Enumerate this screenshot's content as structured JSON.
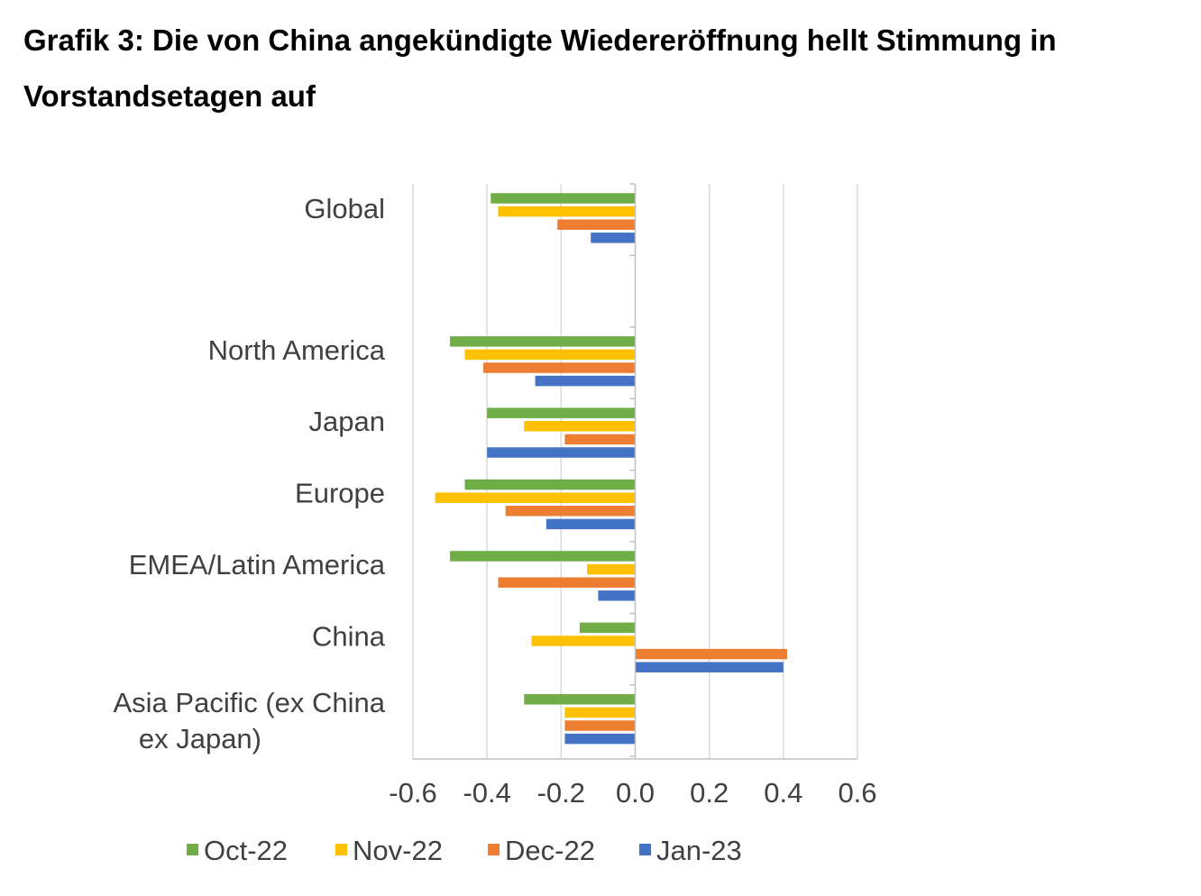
{
  "title": "Grafik 3: Die von China angekündigte Wiedereröffnung hellt Stimmung in Vorstandsetagen auf",
  "chart_data": {
    "type": "bar",
    "orientation": "horizontal",
    "categories": [
      "Global",
      "",
      "North America",
      "Japan",
      "Europe",
      "EMEA/Latin America",
      "China",
      "Asia Pacific (ex China ex Japan)"
    ],
    "series": [
      {
        "name": "Oct-22",
        "color": "#70ad47",
        "values": [
          -0.39,
          null,
          -0.5,
          -0.4,
          -0.46,
          -0.5,
          -0.15,
          -0.3
        ]
      },
      {
        "name": "Nov-22",
        "color": "#ffc000",
        "values": [
          -0.37,
          null,
          -0.46,
          -0.3,
          -0.54,
          -0.13,
          -0.28,
          -0.19
        ]
      },
      {
        "name": "Dec-22",
        "color": "#ed7d31",
        "values": [
          -0.21,
          null,
          -0.41,
          -0.19,
          -0.35,
          -0.37,
          0.41,
          -0.19
        ]
      },
      {
        "name": "Jan-23",
        "color": "#4472c4",
        "values": [
          -0.12,
          null,
          -0.27,
          -0.4,
          -0.24,
          -0.1,
          0.4,
          -0.19
        ]
      }
    ],
    "xlim": [
      -0.6,
      0.6
    ],
    "xticks": [
      "-0.6",
      "-0.4",
      "-0.2",
      "0.0",
      "0.2",
      "0.4",
      "0.6"
    ],
    "grid": "vertical",
    "legend_position": "bottom",
    "xlabel": "",
    "ylabel": ""
  }
}
